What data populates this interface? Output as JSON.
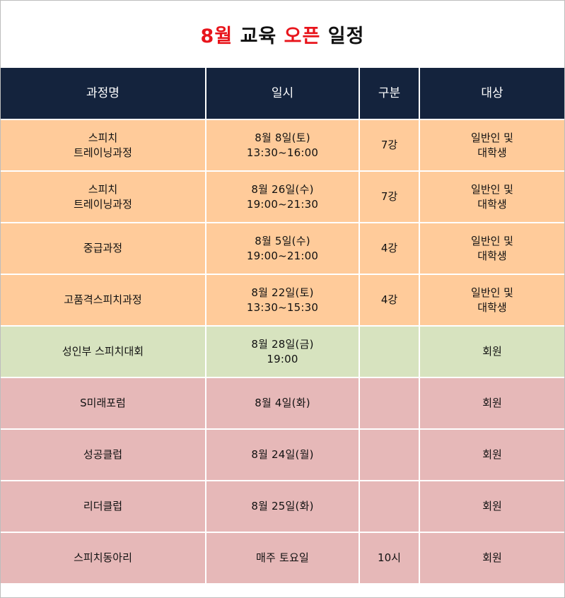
{
  "title": {
    "part1": "8월",
    "part2": " 교육 ",
    "part3": "오픈",
    "part4": " 일정",
    "accent_color": "#e8141b"
  },
  "table": {
    "headers": [
      "과정명",
      "일시",
      "구분",
      "대상"
    ],
    "header_bg": "#14233d",
    "rows": [
      {
        "course": [
          "스피치",
          "트레이닝과정"
        ],
        "datetime": [
          "8월 8일(토)",
          "13:30~16:00"
        ],
        "type": "7강",
        "target": [
          "일반인 및",
          "대학생"
        ],
        "color": "orange"
      },
      {
        "course": [
          "스피치",
          "트레이닝과정"
        ],
        "datetime": [
          "8월 26일(수)",
          "19:00~21:30"
        ],
        "type": "7강",
        "target": [
          "일반인 및",
          "대학생"
        ],
        "color": "orange"
      },
      {
        "course": [
          "중급과정"
        ],
        "datetime": [
          "8월 5일(수)",
          "19:00~21:00"
        ],
        "type": "4강",
        "target": [
          "일반인 및",
          "대학생"
        ],
        "color": "orange"
      },
      {
        "course": [
          "고품격스피치과정"
        ],
        "datetime": [
          "8월 22일(토)",
          "13:30~15:30"
        ],
        "type": "4강",
        "target": [
          "일반인 및",
          "대학생"
        ],
        "color": "orange"
      },
      {
        "course": [
          "성인부 스피치대회"
        ],
        "datetime": [
          "8월 28일(금)",
          "19:00"
        ],
        "type": "",
        "target": [
          "회원"
        ],
        "color": "green"
      },
      {
        "course": [
          "S미래포럼"
        ],
        "datetime": [
          "8월 4일(화)"
        ],
        "type": "",
        "target": [
          "회원"
        ],
        "color": "pink"
      },
      {
        "course": [
          "성공클럽"
        ],
        "datetime": [
          "8월 24일(월)"
        ],
        "type": "",
        "target": [
          "회원"
        ],
        "color": "pink"
      },
      {
        "course": [
          "리더클럽"
        ],
        "datetime": [
          "8월 25일(화)"
        ],
        "type": "",
        "target": [
          "회원"
        ],
        "color": "pink"
      },
      {
        "course": [
          "스피치동아리"
        ],
        "datetime": [
          "매주 토요일"
        ],
        "type": "10시",
        "target": [
          "회원"
        ],
        "color": "pink"
      }
    ],
    "row_colors": {
      "orange": "#ffcb9a",
      "green": "#d7e3bf",
      "pink": "#e6b8b8"
    }
  }
}
